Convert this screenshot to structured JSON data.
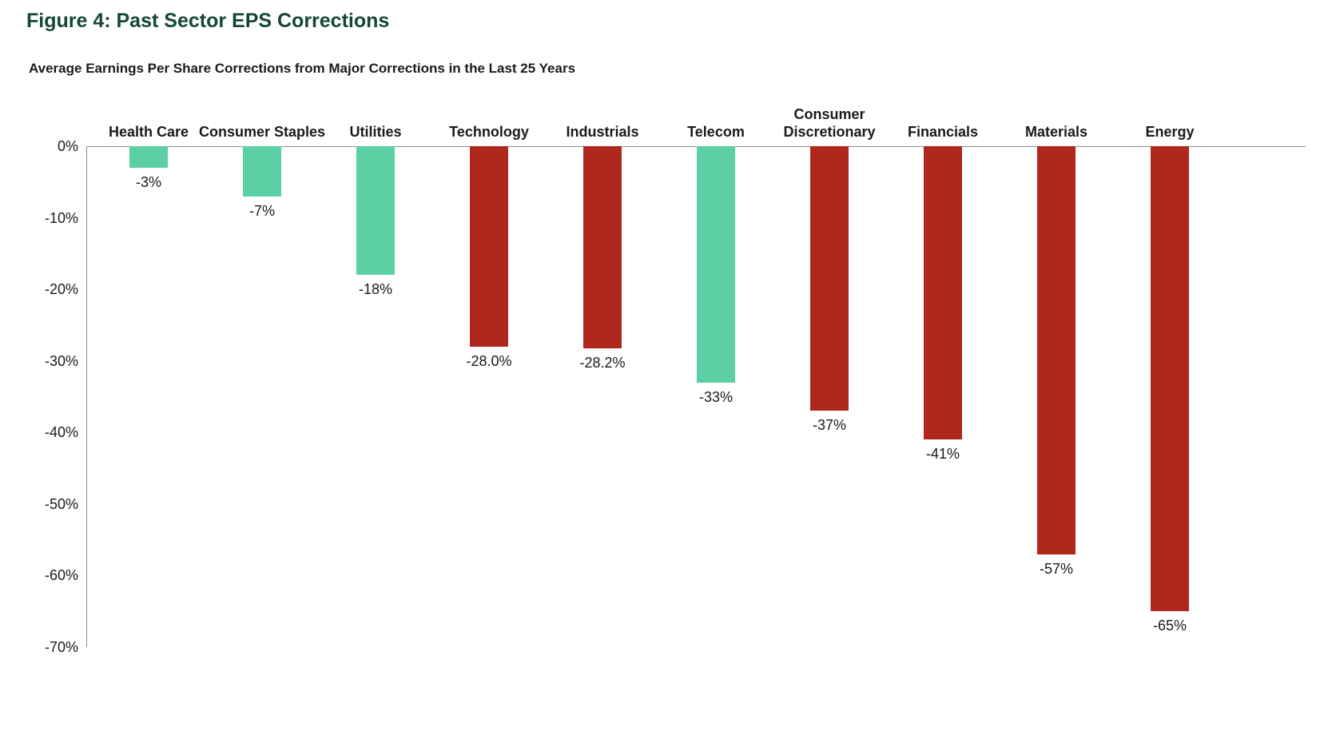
{
  "figure_title": "Figure 4: Past Sector EPS Corrections",
  "chart_data": {
    "type": "bar",
    "title": "Average Earnings Per Share Corrections from Major Corrections in the Last 25 Years",
    "categories": [
      "Health Care",
      "Consumer Staples",
      "Utilities",
      "Technology",
      "Industrials",
      "Telecom",
      "Consumer Discretionary",
      "Financials",
      "Materials",
      "Energy"
    ],
    "values": [
      -3,
      -7,
      -18,
      -28.0,
      -28.2,
      -33,
      -37,
      -41,
      -57,
      -65
    ],
    "value_labels": [
      "-3%",
      "-7%",
      "-18%",
      "-28.0%",
      "-28.2%",
      "-33%",
      "-37%",
      "-41%",
      "-57%",
      "-65%"
    ],
    "bar_colors": [
      "#5dcfa4",
      "#5dcfa4",
      "#5dcfa4",
      "#b0281c",
      "#b0281c",
      "#5dcfa4",
      "#b0281c",
      "#b0281c",
      "#b0281c",
      "#b0281c"
    ],
    "xlabel": "",
    "ylabel": "",
    "ylim": [
      -70,
      0
    ],
    "y_ticks": [
      "0%",
      "-10%",
      "-20%",
      "-30%",
      "-40%",
      "-50%",
      "-60%",
      "-70%"
    ],
    "y_tick_values": [
      0,
      -10,
      -20,
      -30,
      -40,
      -50,
      -60,
      -70
    ],
    "grid": false,
    "legend": "none",
    "colors": {
      "teal_bar": "#5dcfa4",
      "red_bar": "#b0281c",
      "title_green": "#154734",
      "axis_line": "#8c8c8c",
      "text": "#1a1a1a"
    }
  }
}
